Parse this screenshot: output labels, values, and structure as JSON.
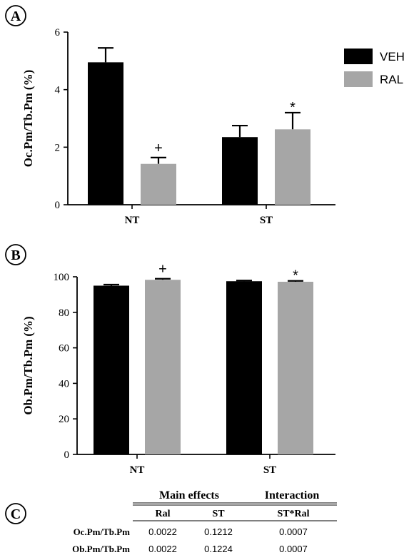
{
  "colors": {
    "veh": "#000000",
    "ral": "#a6a6a6"
  },
  "legend": {
    "items": [
      "VEH",
      "RAL"
    ],
    "placement": "top-right"
  },
  "chart_data": [
    {
      "panel": "A",
      "type": "bar",
      "ylabel": "Oc.Pm/Tb.Pm (%)",
      "ylim": [
        0,
        6
      ],
      "yticks": [
        "0",
        "2",
        "4",
        "6"
      ],
      "categories": [
        "NT",
        "ST"
      ],
      "series": [
        {
          "name": "VEH",
          "values": [
            4.95,
            2.35
          ],
          "errors": [
            0.5,
            0.4
          ]
        },
        {
          "name": "RAL",
          "values": [
            1.42,
            2.62
          ],
          "errors": [
            0.22,
            0.58
          ]
        }
      ],
      "annotations": [
        {
          "text": "+",
          "category": 0,
          "series": 1
        },
        {
          "text": "*",
          "category": 1,
          "series": 1
        }
      ]
    },
    {
      "panel": "B",
      "type": "bar",
      "ylabel": "Ob.Pm/Tb.Pm (%)",
      "ylim": [
        0,
        100
      ],
      "yticks": [
        "0",
        "20",
        "40",
        "60",
        "80",
        "100"
      ],
      "categories": [
        "NT",
        "ST"
      ],
      "series": [
        {
          "name": "VEH",
          "values": [
            95.0,
            97.5
          ],
          "errors": [
            0.6,
            0.4
          ]
        },
        {
          "name": "RAL",
          "values": [
            98.3,
            97.2
          ],
          "errors": [
            0.6,
            0.5
          ]
        }
      ],
      "annotations": [
        {
          "text": "+",
          "category": 0,
          "series": 1
        },
        {
          "text": "*",
          "category": 1,
          "series": 1
        }
      ]
    }
  ],
  "table": {
    "panel": "C",
    "header_main": "Main effects",
    "header_interaction": "Interaction",
    "columns": [
      "Ral",
      "ST",
      "ST*Ral"
    ],
    "rows": [
      {
        "label": "Oc.Pm/Tb.Pm",
        "values": [
          "0.0022",
          "0.1212",
          "0.0007"
        ]
      },
      {
        "label": "Ob.Pm/Tb.Pm",
        "values": [
          "0.0022",
          "0.1224",
          "0.0007"
        ]
      }
    ]
  }
}
